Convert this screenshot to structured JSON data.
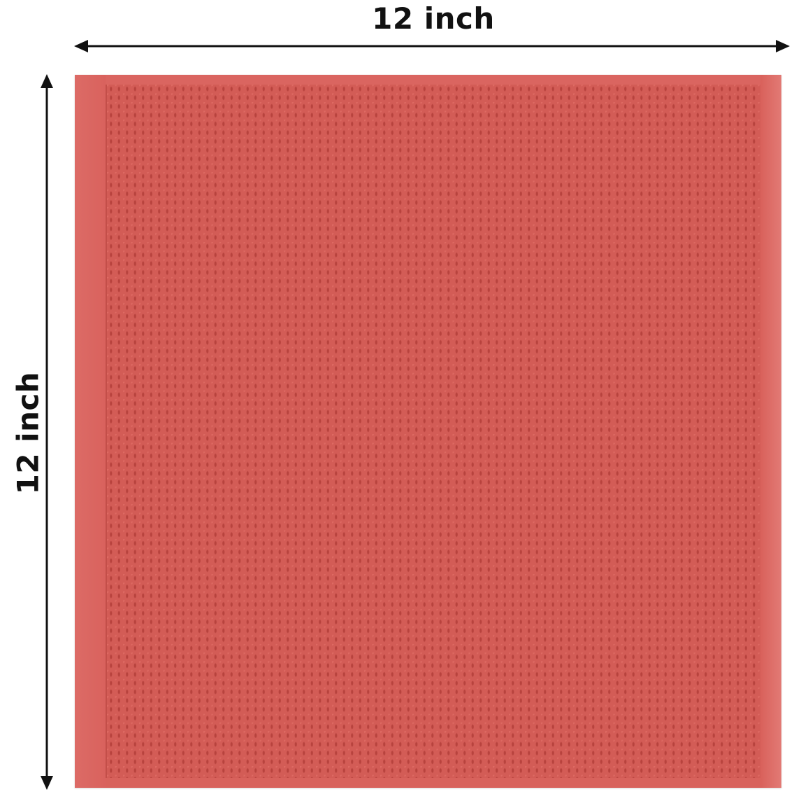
{
  "dimensions": {
    "width_label": "12 inch",
    "height_label": "12 inch"
  },
  "colors": {
    "towel": "#d8625c",
    "weave_shadow": "#b8433e",
    "text": "#111111"
  }
}
